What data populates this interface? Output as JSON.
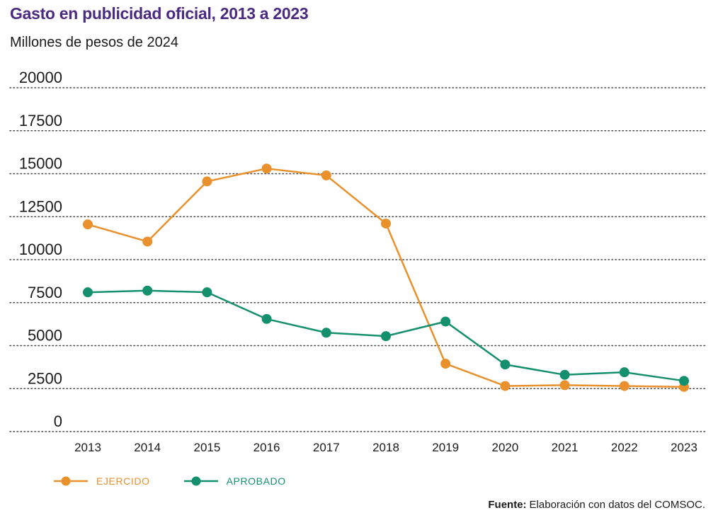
{
  "header": {
    "title": "Gasto en publicidad oficial, 2013 a 2023",
    "subtitle": "Millones de pesos de 2024"
  },
  "footer": {
    "source_label": "Fuente:",
    "source_text": "Elaboración con datos del COMSOC."
  },
  "chart_data": {
    "type": "line",
    "title": "Gasto en publicidad oficial, 2013 a 2023",
    "subtitle": "Millones de pesos de 2024",
    "xlabel": "",
    "ylabel": "",
    "categories": [
      "2013",
      "2014",
      "2015",
      "2016",
      "2017",
      "2018",
      "2019",
      "2020",
      "2021",
      "2022",
      "2023"
    ],
    "ylim": [
      0,
      20000
    ],
    "yticks": [
      0,
      2500,
      5000,
      7500,
      10000,
      12500,
      15000,
      17500,
      20000
    ],
    "grid": "horizontal dotted",
    "legend_position": "bottom-left",
    "series": [
      {
        "name": "EJERCIDO",
        "color": "#e8912d",
        "values": [
          12050,
          11050,
          14550,
          15300,
          14900,
          12100,
          3950,
          2650,
          2700,
          2650,
          2600
        ]
      },
      {
        "name": "APROBADO",
        "color": "#15906e",
        "values": [
          8100,
          8200,
          8100,
          6550,
          5750,
          5550,
          6400,
          3900,
          3300,
          3450,
          2950
        ]
      }
    ]
  }
}
